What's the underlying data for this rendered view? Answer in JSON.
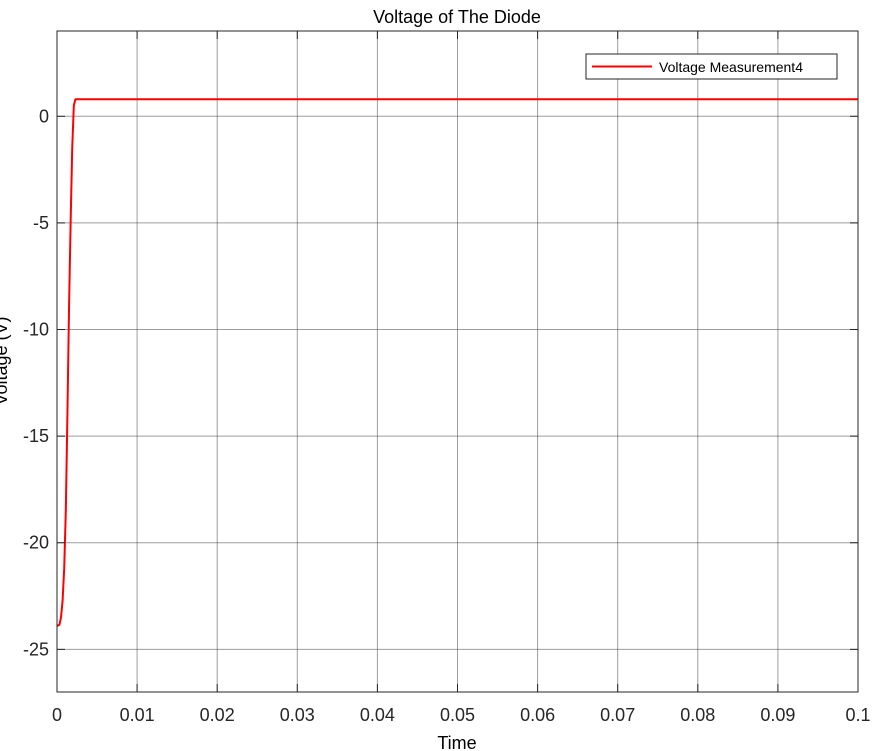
{
  "chart_data": {
    "type": "line",
    "title": "Voltage of The Diode",
    "xlabel": "Time",
    "ylabel": "Voltage (V)",
    "xlim": [
      0,
      0.1
    ],
    "ylim": [
      -27,
      4
    ],
    "xticks": [
      0,
      0.01,
      0.02,
      0.03,
      0.04,
      0.05,
      0.06,
      0.07,
      0.08,
      0.09,
      0.1
    ],
    "xtick_labels": [
      "0",
      "0.01",
      "0.02",
      "0.03",
      "0.04",
      "0.05",
      "0.06",
      "0.07",
      "0.08",
      "0.09",
      "0.1"
    ],
    "yticks": [
      -25,
      -20,
      -15,
      -10,
      -5,
      0
    ],
    "ytick_labels": [
      "-25",
      "-20",
      "-15",
      "-10",
      "-5",
      "0"
    ],
    "grid": true,
    "legend_position": "top-right",
    "series": [
      {
        "name": "Voltage Measurement4",
        "color": "#ff0000",
        "x": [
          0,
          0.0003,
          0.0005,
          0.0007,
          0.0009,
          0.0011,
          0.0013,
          0.0015,
          0.0017,
          0.0019,
          0.0021,
          0.0023,
          0.0025,
          0.005,
          0.01,
          0.02,
          0.03,
          0.04,
          0.05,
          0.06,
          0.07,
          0.08,
          0.09,
          0.1
        ],
        "y": [
          -23.9,
          -23.85,
          -23.5,
          -22.7,
          -21.2,
          -18.5,
          -14.0,
          -9.0,
          -5.0,
          -1.5,
          0.5,
          0.8,
          0.8,
          0.8,
          0.8,
          0.8,
          0.8,
          0.8,
          0.8,
          0.8,
          0.8,
          0.8,
          0.8,
          0.8
        ]
      }
    ]
  }
}
